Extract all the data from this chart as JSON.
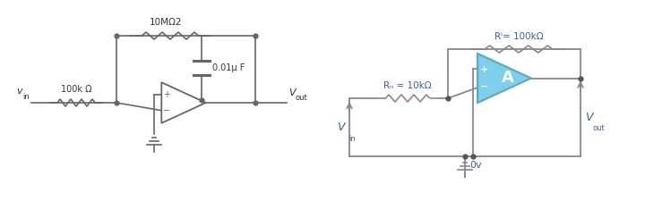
{
  "left": {
    "vin_label": "v",
    "vin_sub": "in",
    "vout_label": "V",
    "vout_sub": "out",
    "r1_label": "100k Ω",
    "rf_label": "10MΩ2",
    "cf_label": "0.01μ F",
    "lc": "#666666",
    "tc": "#333333"
  },
  "right": {
    "rin_label": "Rₙ = 10kΩ",
    "rf_label": "Rⁱ= 100kΩ",
    "vin_label": "V",
    "vin_sub": "in",
    "vout_label": "V",
    "vout_sub": "out",
    "gnd_label": "0v",
    "amp_label": "A",
    "amp_fill": "#7dcfeb",
    "amp_edge": "#5aaabb",
    "lc": "#888888",
    "tc": "#3a5fa0"
  }
}
